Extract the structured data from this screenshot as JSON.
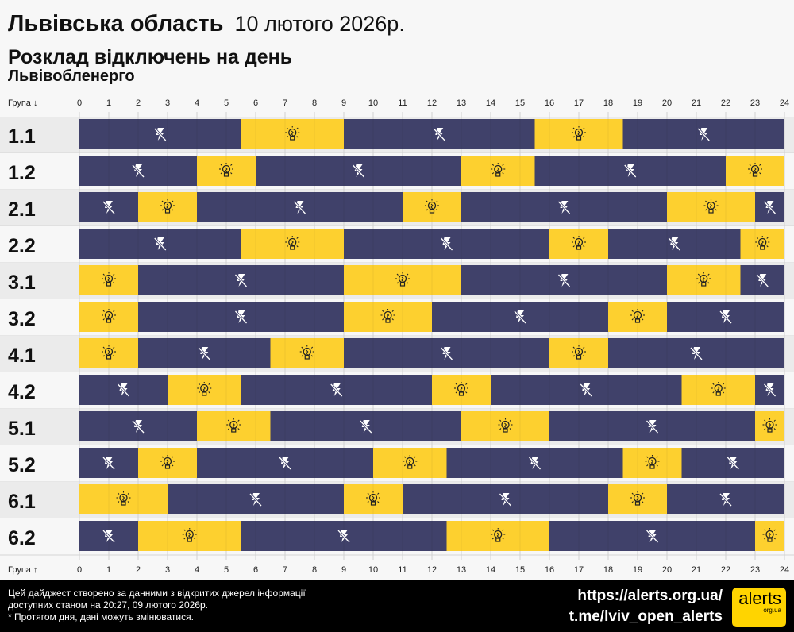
{
  "header": {
    "title": "Львівська область",
    "date": "10 лютого 2026р.",
    "subtitle": "Розклад відключень на день",
    "provider": "Львівобленерго"
  },
  "chart_data": {
    "type": "bar",
    "orientation": "horizontal-timeline",
    "x_label_top": "Група ↓",
    "x_label_bottom": "Група ↑",
    "xlim": [
      0,
      24
    ],
    "x_ticks": [
      "0",
      "1",
      "2",
      "3",
      "4",
      "5",
      "6",
      "7",
      "8",
      "9",
      "10",
      "11",
      "12",
      "13",
      "14",
      "15",
      "16",
      "17",
      "18",
      "19",
      "20",
      "21",
      "22",
      "23",
      "24"
    ],
    "colors": {
      "off": "#40416a",
      "on": "#fdd02f"
    },
    "legend_icons": {
      "off": "lightning-off-icon",
      "on": "light-bulb-icon"
    },
    "groups": [
      {
        "name": "1.1",
        "segments": [
          [
            "off",
            0,
            5.5
          ],
          [
            "on",
            5.5,
            9
          ],
          [
            "off",
            9,
            15.5
          ],
          [
            "on",
            15.5,
            18.5
          ],
          [
            "off",
            18.5,
            24
          ]
        ]
      },
      {
        "name": "1.2",
        "segments": [
          [
            "off",
            0,
            4
          ],
          [
            "on",
            4,
            6
          ],
          [
            "off",
            6,
            13
          ],
          [
            "on",
            13,
            15.5
          ],
          [
            "off",
            15.5,
            22
          ],
          [
            "on",
            22,
            24
          ]
        ]
      },
      {
        "name": "2.1",
        "segments": [
          [
            "off",
            0,
            2
          ],
          [
            "on",
            2,
            4
          ],
          [
            "off",
            4,
            11
          ],
          [
            "on",
            11,
            13
          ],
          [
            "off",
            13,
            20
          ],
          [
            "on",
            20,
            23
          ],
          [
            "off",
            23,
            24
          ]
        ]
      },
      {
        "name": "2.2",
        "segments": [
          [
            "off",
            0,
            5.5
          ],
          [
            "on",
            5.5,
            9
          ],
          [
            "off",
            9,
            16
          ],
          [
            "on",
            16,
            18
          ],
          [
            "off",
            18,
            22.5
          ],
          [
            "on",
            22.5,
            24
          ]
        ]
      },
      {
        "name": "3.1",
        "segments": [
          [
            "on",
            0,
            2
          ],
          [
            "off",
            2,
            9
          ],
          [
            "on",
            9,
            13
          ],
          [
            "off",
            13,
            20
          ],
          [
            "on",
            20,
            22.5
          ],
          [
            "off",
            22.5,
            24
          ]
        ]
      },
      {
        "name": "3.2",
        "segments": [
          [
            "on",
            0,
            2
          ],
          [
            "off",
            2,
            9
          ],
          [
            "on",
            9,
            12
          ],
          [
            "off",
            12,
            18
          ],
          [
            "on",
            18,
            20
          ],
          [
            "off",
            20,
            24
          ]
        ]
      },
      {
        "name": "4.1",
        "segments": [
          [
            "on",
            0,
            2
          ],
          [
            "off",
            2,
            6.5
          ],
          [
            "on",
            6.5,
            9
          ],
          [
            "off",
            9,
            16
          ],
          [
            "on",
            16,
            18
          ],
          [
            "off",
            18,
            24
          ]
        ]
      },
      {
        "name": "4.2",
        "segments": [
          [
            "off",
            0,
            3
          ],
          [
            "on",
            3,
            5.5
          ],
          [
            "off",
            5.5,
            12
          ],
          [
            "on",
            12,
            14
          ],
          [
            "off",
            14,
            20.5
          ],
          [
            "on",
            20.5,
            23
          ],
          [
            "off",
            23,
            24
          ]
        ]
      },
      {
        "name": "5.1",
        "segments": [
          [
            "off",
            0,
            4
          ],
          [
            "on",
            4,
            6.5
          ],
          [
            "off",
            6.5,
            13
          ],
          [
            "on",
            13,
            16
          ],
          [
            "off",
            16,
            23
          ],
          [
            "on",
            23,
            24
          ]
        ]
      },
      {
        "name": "5.2",
        "segments": [
          [
            "off",
            0,
            2
          ],
          [
            "on",
            2,
            4
          ],
          [
            "off",
            4,
            10
          ],
          [
            "on",
            10,
            12.5
          ],
          [
            "off",
            12.5,
            18.5
          ],
          [
            "on",
            18.5,
            20.5
          ],
          [
            "off",
            20.5,
            24
          ]
        ]
      },
      {
        "name": "6.1",
        "segments": [
          [
            "on",
            0,
            3
          ],
          [
            "off",
            3,
            9
          ],
          [
            "on",
            9,
            11
          ],
          [
            "off",
            11,
            18
          ],
          [
            "on",
            18,
            20
          ],
          [
            "off",
            20,
            24
          ]
        ]
      },
      {
        "name": "6.2",
        "segments": [
          [
            "off",
            0,
            2
          ],
          [
            "on",
            2,
            5.5
          ],
          [
            "off",
            5.5,
            12.5
          ],
          [
            "on",
            12.5,
            16
          ],
          [
            "off",
            16,
            23
          ],
          [
            "on",
            23,
            24
          ]
        ]
      }
    ]
  },
  "footer": {
    "note_lines": [
      "Цей дайджест створено за данними з відкритих джерел інформації",
      "доступних станом на 20:27, 09 лютого 2026р.",
      "* Протягом дня, дані можуть змінюватися."
    ],
    "site_link": "https://alerts.org.ua/",
    "telegram_link": "t.me/lviv_open_alerts",
    "logo_text": "alerts",
    "logo_sub": "org.ua"
  }
}
